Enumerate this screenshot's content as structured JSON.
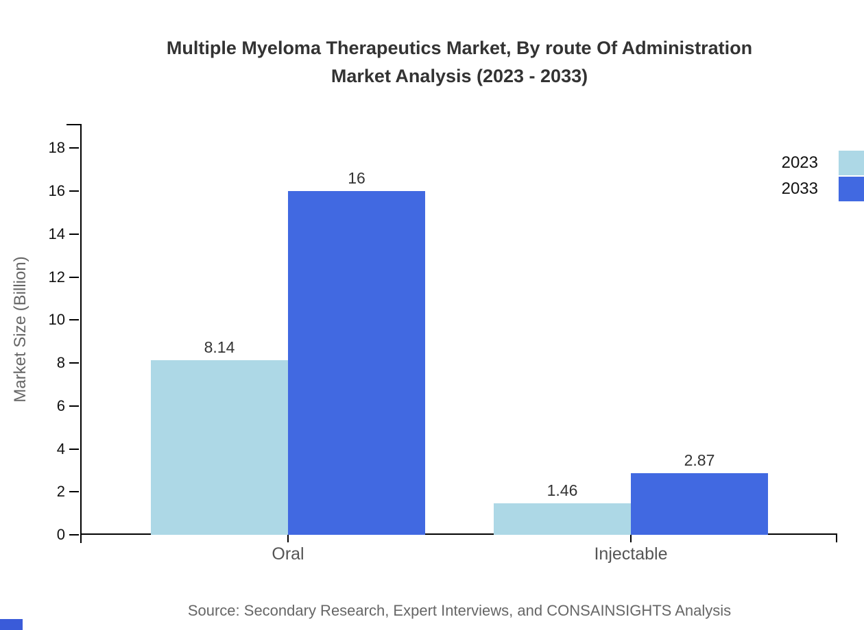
{
  "title": {
    "line1": "Multiple Myeloma Therapeutics Market, By route Of Administration",
    "line2": "Market Analysis (2023 - 2033)"
  },
  "source": "Source: Secondary Research, Expert Interviews, and CONSAINSIGHTS Analysis",
  "brand": {
    "corner_mark_color": "#3A5BD9"
  },
  "chart_data": {
    "type": "bar",
    "title": "Multiple Myeloma Therapeutics Market, By route Of Administration Market Analysis (2023 - 2033)",
    "categories": [
      "Oral",
      "Injectable"
    ],
    "series": [
      {
        "name": "2023",
        "color": "#ADD8E6",
        "values": [
          8.14,
          1.46
        ],
        "value_labels": [
          "8.14",
          "1.46"
        ]
      },
      {
        "name": "2033",
        "color": "#4169E1",
        "values": [
          16,
          2.87
        ],
        "value_labels": [
          "16",
          "2.87"
        ]
      }
    ],
    "xlabel": "",
    "ylabel": "Market Size (Billion)",
    "ylim": [
      0,
      19.1
    ],
    "yticks": [
      0,
      2,
      4,
      6,
      8,
      10,
      12,
      14,
      16,
      18
    ],
    "grid": false,
    "legend_position": "top-right",
    "axis_color": "#000000"
  }
}
